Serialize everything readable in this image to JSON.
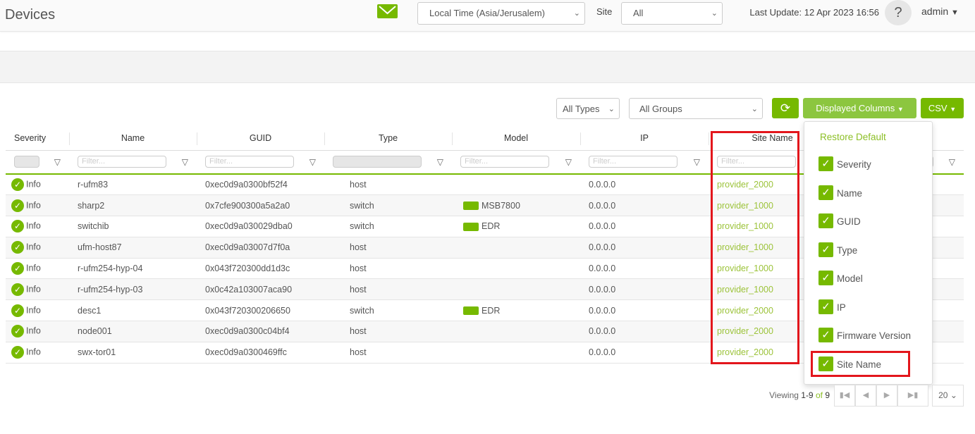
{
  "header": {
    "title": "Devices",
    "timezone": "Local Time (Asia/Jerusalem)",
    "site_label": "Site",
    "site_value": "All",
    "last_update": "Last Update: 12 Apr 2023 16:56",
    "help": "?",
    "user": "admin"
  },
  "toolbar": {
    "types": "All Types",
    "groups": "All Groups",
    "displayed_columns": "Displayed Columns",
    "csv": "CSV"
  },
  "columns": [
    "Severity",
    "Name",
    "GUID",
    "Type",
    "Model",
    "IP",
    "Site Name"
  ],
  "filter_placeholder": "Filter...",
  "rows": [
    {
      "severity": "Info",
      "name": "r-ufm83",
      "guid": "0xec0d9a0300bf52f4",
      "type": "host",
      "model": "",
      "ip": "0.0.0.0",
      "site": "provider_2000"
    },
    {
      "severity": "Info",
      "name": "sharp2",
      "guid": "0x7cfe900300a5a2a0",
      "type": "switch",
      "model": "MSB7800",
      "ip": "0.0.0.0",
      "site": "provider_1000"
    },
    {
      "severity": "Info",
      "name": "switchib",
      "guid": "0xec0d9a030029dba0",
      "type": "switch",
      "model": "EDR",
      "ip": "0.0.0.0",
      "site": "provider_1000"
    },
    {
      "severity": "Info",
      "name": "ufm-host87",
      "guid": "0xec0d9a03007d7f0a",
      "type": "host",
      "model": "",
      "ip": "0.0.0.0",
      "site": "provider_1000"
    },
    {
      "severity": "Info",
      "name": "r-ufm254-hyp-04",
      "guid": "0x043f720300dd1d3c",
      "type": "host",
      "model": "",
      "ip": "0.0.0.0",
      "site": "provider_1000"
    },
    {
      "severity": "Info",
      "name": "r-ufm254-hyp-03",
      "guid": "0x0c42a103007aca90",
      "type": "host",
      "model": "",
      "ip": "0.0.0.0",
      "site": "provider_1000"
    },
    {
      "severity": "Info",
      "name": "desc1",
      "guid": "0x043f720300206650",
      "type": "switch",
      "model": "EDR",
      "ip": "0.0.0.0",
      "site": "provider_2000"
    },
    {
      "severity": "Info",
      "name": "node001",
      "guid": "0xec0d9a0300c04bf4",
      "type": "host",
      "model": "",
      "ip": "0.0.0.0",
      "site": "provider_2000"
    },
    {
      "severity": "Info",
      "name": "swx-tor01",
      "guid": "0xec0d9a0300469ffc",
      "type": "host",
      "model": "",
      "ip": "0.0.0.0",
      "site": "provider_2000"
    }
  ],
  "column_menu": {
    "restore": "Restore Default",
    "items": [
      "Severity",
      "Name",
      "GUID",
      "Type",
      "Model",
      "IP",
      "Firmware Version",
      "Site Name"
    ]
  },
  "pagination": {
    "viewing": "Viewing",
    "range": "1-9",
    "of": "of",
    "total": "9",
    "page_size": "20"
  },
  "colors": {
    "accent": "#76b900",
    "highlight": "#e3161c"
  }
}
